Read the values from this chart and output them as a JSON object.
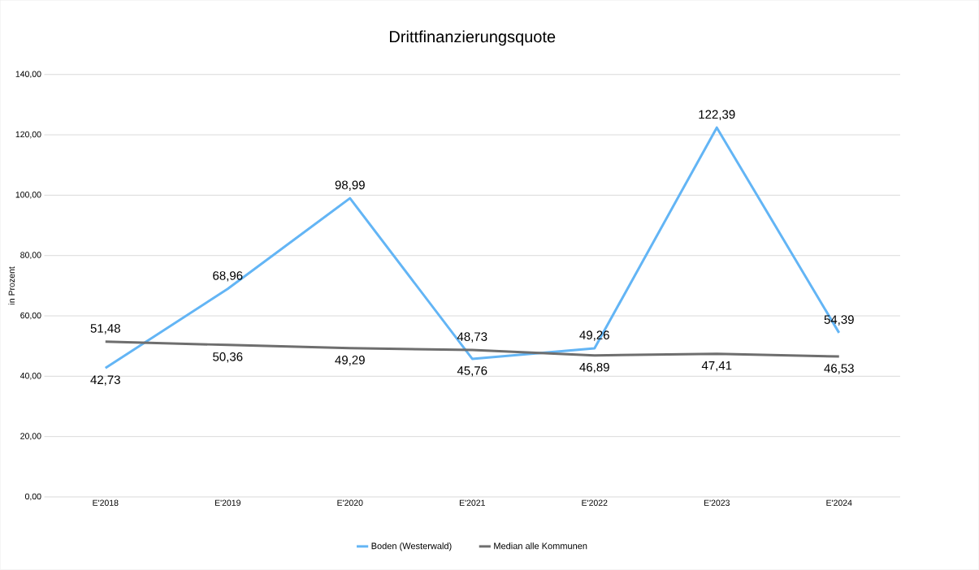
{
  "chart_data": {
    "type": "line",
    "title": "Drittfinanzierungsquote",
    "ylabel": "in Prozent",
    "categories": [
      "E'2018",
      "E'2019",
      "E'2020",
      "E'2021",
      "E'2022",
      "E'2023",
      "E'2024"
    ],
    "series": [
      {
        "name": "Boden (Westerwald)",
        "color": "#63b5f5",
        "values": [
          42.73,
          68.96,
          98.99,
          45.76,
          49.26,
          122.39,
          54.39
        ],
        "value_labels": [
          "42,73",
          "68,96",
          "98,99",
          "45,76",
          "49,26",
          "122,39",
          "54,39"
        ]
      },
      {
        "name": "Median alle Kommunen",
        "color": "#6e6e6e",
        "values": [
          51.48,
          50.36,
          49.29,
          48.73,
          46.89,
          47.41,
          46.53
        ],
        "value_labels": [
          "51,48",
          "50,36",
          "49,29",
          "48,73",
          "46,89",
          "47,41",
          "46,53"
        ]
      }
    ],
    "ylim": [
      0,
      140
    ],
    "yticks": [
      {
        "value": 0,
        "label": "0,00"
      },
      {
        "value": 20,
        "label": "20,00"
      },
      {
        "value": 40,
        "label": "40,00"
      },
      {
        "value": 60,
        "label": "60,00"
      },
      {
        "value": 80,
        "label": "80,00"
      },
      {
        "value": 100,
        "label": "100,00"
      },
      {
        "value": 120,
        "label": "120,00"
      },
      {
        "value": 140,
        "label": "140,00"
      }
    ],
    "grid": "y",
    "legend": "bottom"
  }
}
